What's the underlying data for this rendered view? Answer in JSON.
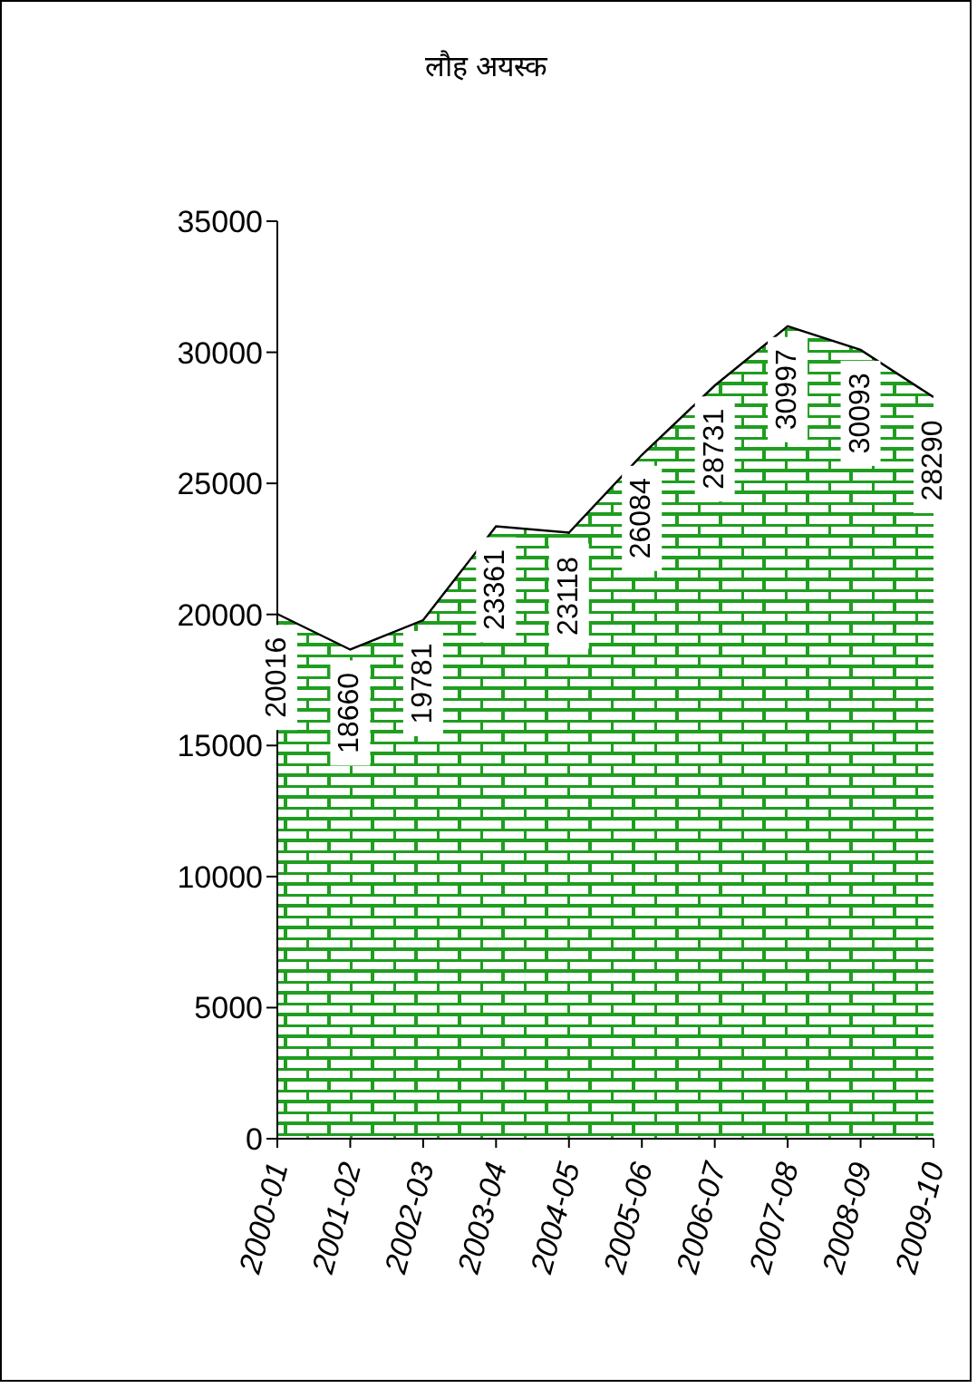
{
  "chart_data": {
    "type": "area",
    "title": "लौह अयस्क",
    "categories": [
      "2000-01",
      "2001-02",
      "2002-03",
      "2003-04",
      "2004-05",
      "2005-06",
      "2006-07",
      "2007-08",
      "2008-09",
      "2009-10"
    ],
    "values": [
      20016,
      18660,
      19781,
      23361,
      23118,
      26084,
      28731,
      30997,
      30093,
      28290
    ],
    "color": "#1f9e1f",
    "ylim": [
      0,
      35000
    ],
    "yticks": [
      0,
      5000,
      10000,
      15000,
      20000,
      25000,
      30000,
      35000
    ],
    "value_labels": [
      "20016",
      "18660",
      "19781",
      "23361",
      "23118",
      "26084",
      "28731",
      "30997",
      "30093",
      "28290"
    ]
  }
}
